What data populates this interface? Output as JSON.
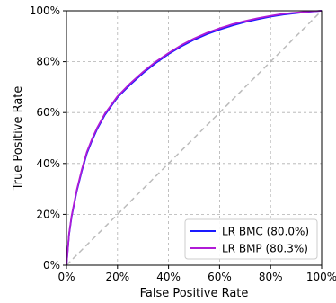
{
  "chart_data": {
    "type": "line",
    "xlabel": "False Positive Rate",
    "ylabel": "True Positive Rate",
    "xlim": [
      0,
      100
    ],
    "ylim": [
      0,
      100
    ],
    "x_ticks": [
      0,
      20,
      40,
      60,
      80,
      100
    ],
    "y_ticks": [
      0,
      20,
      40,
      60,
      80,
      100
    ],
    "x_tick_labels": [
      "0%",
      "20%",
      "40%",
      "60%",
      "80%",
      "100%"
    ],
    "y_tick_labels": [
      "0%",
      "20%",
      "40%",
      "60%",
      "80%",
      "100%"
    ],
    "grid": true,
    "legend_position": "lower-right",
    "reference_line": {
      "x": [
        0,
        100
      ],
      "y": [
        0,
        100
      ],
      "color": "#bbbbbb",
      "style": "dashed"
    },
    "series": [
      {
        "name": "LR BMC (80.0%)",
        "color": "#1a1aff",
        "x": [
          0,
          1,
          2,
          4,
          6,
          8,
          10,
          12,
          15,
          20,
          25,
          30,
          35,
          40,
          45,
          50,
          55,
          60,
          65,
          70,
          75,
          80,
          85,
          90,
          95,
          100
        ],
        "y": [
          0,
          12,
          19,
          29,
          37,
          44,
          49,
          53.5,
          59,
          66,
          71,
          75.5,
          79.5,
          83,
          86,
          88.6,
          90.8,
          92.6,
          94.2,
          95.6,
          96.7,
          97.7,
          98.5,
          99.1,
          99.6,
          100
        ]
      },
      {
        "name": "LR BMP (80.3%)",
        "color": "#b01bd6",
        "x": [
          0,
          1,
          2,
          4,
          6,
          8,
          10,
          12,
          15,
          20,
          25,
          30,
          35,
          40,
          45,
          50,
          55,
          60,
          65,
          70,
          75,
          80,
          85,
          90,
          95,
          100
        ],
        "y": [
          0,
          12.3,
          19.4,
          29.5,
          37.6,
          44.6,
          49.6,
          54,
          59.5,
          66.4,
          71.5,
          76,
          80,
          83.4,
          86.5,
          89.1,
          91.3,
          93.1,
          94.7,
          96,
          97.1,
          98,
          98.8,
          99.3,
          99.7,
          100
        ]
      }
    ]
  }
}
